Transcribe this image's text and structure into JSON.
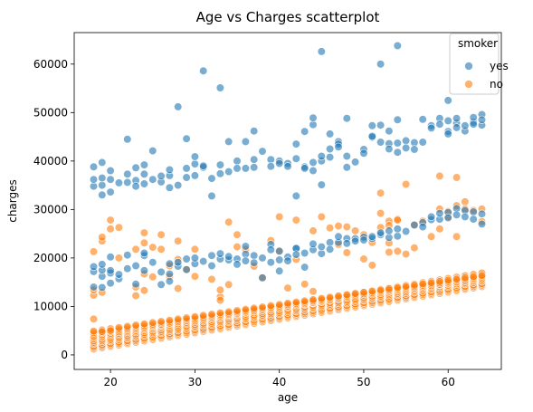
{
  "chart_data": {
    "type": "scatter",
    "title": "Age vs Charges scatterplot",
    "xlabel": "age",
    "ylabel": "charges",
    "xlim": [
      15.7,
      66.3
    ],
    "ylim": [
      -3000,
      66500
    ],
    "xticks": [
      20,
      30,
      40,
      50,
      60
    ],
    "yticks": [
      0,
      10000,
      20000,
      30000,
      40000,
      50000,
      60000
    ],
    "grid": false,
    "legend": {
      "title": "smoker",
      "position": "top-right"
    },
    "series": [
      {
        "name": "yes",
        "color": "#1f77b4",
        "points": [
          [
            18,
            34800
          ],
          [
            18,
            36200
          ],
          [
            18,
            38800
          ],
          [
            18,
            14000
          ],
          [
            18,
            17200
          ],
          [
            18,
            18200
          ],
          [
            19,
            33000
          ],
          [
            19,
            35000
          ],
          [
            19,
            36500
          ],
          [
            19,
            39700
          ],
          [
            19,
            16200
          ],
          [
            19,
            17500
          ],
          [
            19,
            18700
          ],
          [
            19,
            13900
          ],
          [
            20,
            33600
          ],
          [
            20,
            36200
          ],
          [
            20,
            38000
          ],
          [
            20,
            16900
          ],
          [
            20,
            17400
          ],
          [
            20,
            20200
          ],
          [
            20,
            14800
          ],
          [
            21,
            35500
          ],
          [
            21,
            15700
          ],
          [
            21,
            16600
          ],
          [
            22,
            37300
          ],
          [
            22,
            35600
          ],
          [
            22,
            44500
          ],
          [
            22,
            20600
          ],
          [
            22,
            17800
          ],
          [
            23,
            36000
          ],
          [
            23,
            38600
          ],
          [
            23,
            34800
          ],
          [
            23,
            18400
          ],
          [
            23,
            14600
          ],
          [
            24,
            37300
          ],
          [
            24,
            35300
          ],
          [
            24,
            39200
          ],
          [
            24,
            17400
          ],
          [
            24,
            20500
          ],
          [
            24,
            21000
          ],
          [
            25,
            36200
          ],
          [
            25,
            42100
          ],
          [
            25,
            19100
          ],
          [
            26,
            35700
          ],
          [
            26,
            36900
          ],
          [
            26,
            17100
          ],
          [
            26,
            14500
          ],
          [
            27,
            37000
          ],
          [
            27,
            34500
          ],
          [
            27,
            38200
          ],
          [
            27,
            16700
          ],
          [
            27,
            18800
          ],
          [
            27,
            15200
          ],
          [
            28,
            35000
          ],
          [
            28,
            51200
          ],
          [
            28,
            18300
          ],
          [
            28,
            19100
          ],
          [
            29,
            38500
          ],
          [
            29,
            44600
          ],
          [
            29,
            36600
          ],
          [
            29,
            19800
          ],
          [
            29,
            17600
          ],
          [
            30,
            37000
          ],
          [
            30,
            39400
          ],
          [
            30,
            40900
          ],
          [
            30,
            18800
          ],
          [
            30,
            20000
          ],
          [
            31,
            38700
          ],
          [
            31,
            58600
          ],
          [
            31,
            39000
          ],
          [
            31,
            19300
          ],
          [
            32,
            32800
          ],
          [
            32,
            36400
          ],
          [
            32,
            20500
          ],
          [
            32,
            18400
          ],
          [
            33,
            37400
          ],
          [
            33,
            55100
          ],
          [
            33,
            39200
          ],
          [
            33,
            19800
          ],
          [
            33,
            20900
          ],
          [
            34,
            44000
          ],
          [
            34,
            37800
          ],
          [
            34,
            19600
          ],
          [
            34,
            20300
          ],
          [
            35,
            40000
          ],
          [
            35,
            38500
          ],
          [
            35,
            19800
          ],
          [
            35,
            18700
          ],
          [
            36,
            44000
          ],
          [
            36,
            38500
          ],
          [
            36,
            20800
          ],
          [
            36,
            22400
          ],
          [
            36,
            19400
          ],
          [
            37,
            46200
          ],
          [
            37,
            40300
          ],
          [
            37,
            38700
          ],
          [
            37,
            20500
          ],
          [
            37,
            19000
          ],
          [
            38,
            42000
          ],
          [
            38,
            20000
          ],
          [
            38,
            15900
          ],
          [
            39,
            40300
          ],
          [
            39,
            38900
          ],
          [
            39,
            22800
          ],
          [
            39,
            21700
          ],
          [
            39,
            19100
          ],
          [
            40,
            40000
          ],
          [
            40,
            39500
          ],
          [
            40,
            17300
          ],
          [
            40,
            21400
          ],
          [
            40,
            19600
          ],
          [
            41,
            39500
          ],
          [
            41,
            38900
          ],
          [
            41,
            20200
          ],
          [
            41,
            19400
          ],
          [
            42,
            40500
          ],
          [
            42,
            32800
          ],
          [
            42,
            43500
          ],
          [
            42,
            21900
          ],
          [
            42,
            22000
          ],
          [
            42,
            20700
          ],
          [
            43,
            38800
          ],
          [
            43,
            46100
          ],
          [
            43,
            38500
          ],
          [
            43,
            21000
          ],
          [
            43,
            18100
          ],
          [
            44,
            47500
          ],
          [
            44,
            48900
          ],
          [
            44,
            39700
          ],
          [
            44,
            38000
          ],
          [
            44,
            21700
          ],
          [
            44,
            22900
          ],
          [
            45,
            62600
          ],
          [
            45,
            40000
          ],
          [
            45,
            35100
          ],
          [
            45,
            41000
          ],
          [
            45,
            20900
          ],
          [
            45,
            22300
          ],
          [
            46,
            42500
          ],
          [
            46,
            45600
          ],
          [
            46,
            40800
          ],
          [
            46,
            23200
          ],
          [
            46,
            21800
          ],
          [
            47,
            44000
          ],
          [
            47,
            43500
          ],
          [
            47,
            42900
          ],
          [
            47,
            23200
          ],
          [
            47,
            24400
          ],
          [
            48,
            48800
          ],
          [
            48,
            41000
          ],
          [
            48,
            38700
          ],
          [
            48,
            24000
          ],
          [
            48,
            23000
          ],
          [
            49,
            39800
          ],
          [
            49,
            24000
          ],
          [
            49,
            23500
          ],
          [
            50,
            42400
          ],
          [
            50,
            41600
          ],
          [
            50,
            24300
          ],
          [
            50,
            23700
          ],
          [
            51,
            44900
          ],
          [
            51,
            47300
          ],
          [
            51,
            45100
          ],
          [
            51,
            24000
          ],
          [
            51,
            24400
          ],
          [
            52,
            60000
          ],
          [
            52,
            47400
          ],
          [
            52,
            43900
          ],
          [
            52,
            24800
          ],
          [
            52,
            25200
          ],
          [
            53,
            43600
          ],
          [
            53,
            42500
          ],
          [
            53,
            46200
          ],
          [
            53,
            24200
          ],
          [
            53,
            25600
          ],
          [
            54,
            63800
          ],
          [
            54,
            48500
          ],
          [
            54,
            43700
          ],
          [
            54,
            41800
          ],
          [
            54,
            24500
          ],
          [
            54,
            26000
          ],
          [
            55,
            44200
          ],
          [
            55,
            42700
          ],
          [
            55,
            25500
          ],
          [
            56,
            43800
          ],
          [
            56,
            42400
          ],
          [
            56,
            26800
          ],
          [
            57,
            48600
          ],
          [
            57,
            43900
          ],
          [
            57,
            27300
          ],
          [
            57,
            26400
          ],
          [
            58,
            47300
          ],
          [
            58,
            46800
          ],
          [
            58,
            27900
          ],
          [
            58,
            28500
          ],
          [
            59,
            48800
          ],
          [
            59,
            47600
          ],
          [
            59,
            28000
          ],
          [
            59,
            29200
          ],
          [
            60,
            52500
          ],
          [
            60,
            48300
          ],
          [
            60,
            46100
          ],
          [
            60,
            45600
          ],
          [
            60,
            29400
          ],
          [
            60,
            28300
          ],
          [
            61,
            47800
          ],
          [
            61,
            46900
          ],
          [
            61,
            48800
          ],
          [
            61,
            30200
          ],
          [
            61,
            28900
          ],
          [
            62,
            46200
          ],
          [
            62,
            47300
          ],
          [
            62,
            29800
          ],
          [
            62,
            28500
          ],
          [
            63,
            48000
          ],
          [
            63,
            49000
          ],
          [
            63,
            47600
          ],
          [
            63,
            29500
          ],
          [
            63,
            28000
          ],
          [
            64,
            49600
          ],
          [
            64,
            47400
          ],
          [
            64,
            48500
          ],
          [
            64,
            27000
          ],
          [
            64,
            29100
          ]
        ]
      },
      {
        "name": "no",
        "color": "#ff7f0e",
        "base_points": [
          [
            18,
            1200
          ],
          [
            64,
            14100
          ],
          [
            18,
            2300
          ],
          [
            64,
            15200
          ],
          [
            18,
            3300
          ],
          [
            64,
            16300
          ],
          [
            18,
            4300
          ],
          [
            64,
            15800
          ]
        ],
        "points": [
          [
            18,
            21300
          ],
          [
            18,
            7400
          ],
          [
            18,
            12300
          ],
          [
            18,
            13400
          ],
          [
            19,
            23500
          ],
          [
            19,
            24300
          ],
          [
            19,
            4800
          ],
          [
            19,
            12900
          ],
          [
            20,
            27800
          ],
          [
            20,
            26000
          ],
          [
            20,
            5000
          ],
          [
            21,
            26300
          ],
          [
            21,
            20000
          ],
          [
            23,
            12200
          ],
          [
            23,
            14000
          ],
          [
            23,
            21800
          ],
          [
            24,
            25200
          ],
          [
            24,
            16700
          ],
          [
            24,
            13300
          ],
          [
            24,
            23100
          ],
          [
            25,
            22200
          ],
          [
            25,
            16100
          ],
          [
            26,
            24800
          ],
          [
            26,
            21800
          ],
          [
            27,
            18400
          ],
          [
            27,
            16200
          ],
          [
            28,
            23500
          ],
          [
            28,
            19700
          ],
          [
            28,
            13700
          ],
          [
            29,
            17600
          ],
          [
            30,
            16200
          ],
          [
            30,
            21800
          ],
          [
            32,
            15600
          ],
          [
            33,
            12000
          ],
          [
            33,
            13400
          ],
          [
            33,
            11300
          ],
          [
            34,
            27400
          ],
          [
            34,
            14500
          ],
          [
            35,
            24800
          ],
          [
            35,
            22300
          ],
          [
            36,
            21800
          ],
          [
            37,
            18300
          ],
          [
            38,
            15900
          ],
          [
            39,
            23600
          ],
          [
            40,
            28500
          ],
          [
            40,
            21500
          ],
          [
            41,
            13800
          ],
          [
            42,
            19700
          ],
          [
            42,
            27800
          ],
          [
            43,
            14600
          ],
          [
            44,
            13100
          ],
          [
            44,
            25600
          ],
          [
            45,
            28500
          ],
          [
            46,
            26200
          ],
          [
            47,
            26600
          ],
          [
            47,
            22800
          ],
          [
            48,
            26400
          ],
          [
            48,
            21100
          ],
          [
            49,
            25600
          ],
          [
            50,
            24800
          ],
          [
            50,
            19800
          ],
          [
            51,
            23200
          ],
          [
            51,
            18500
          ],
          [
            52,
            33400
          ],
          [
            52,
            29200
          ],
          [
            52,
            26300
          ],
          [
            53,
            27600
          ],
          [
            53,
            21200
          ],
          [
            53,
            26700
          ],
          [
            53,
            23100
          ],
          [
            54,
            28000
          ],
          [
            54,
            27800
          ],
          [
            54,
            21400
          ],
          [
            55,
            35200
          ],
          [
            55,
            20800
          ],
          [
            56,
            26800
          ],
          [
            56,
            22100
          ],
          [
            57,
            27600
          ],
          [
            58,
            24400
          ],
          [
            59,
            36900
          ],
          [
            59,
            30100
          ],
          [
            59,
            26000
          ],
          [
            60,
            29600
          ],
          [
            60,
            28500
          ],
          [
            61,
            36600
          ],
          [
            61,
            30800
          ],
          [
            61,
            24400
          ],
          [
            62,
            31600
          ],
          [
            62,
            30100
          ],
          [
            63,
            29800
          ],
          [
            64,
            30100
          ],
          [
            64,
            27500
          ]
        ]
      }
    ]
  }
}
